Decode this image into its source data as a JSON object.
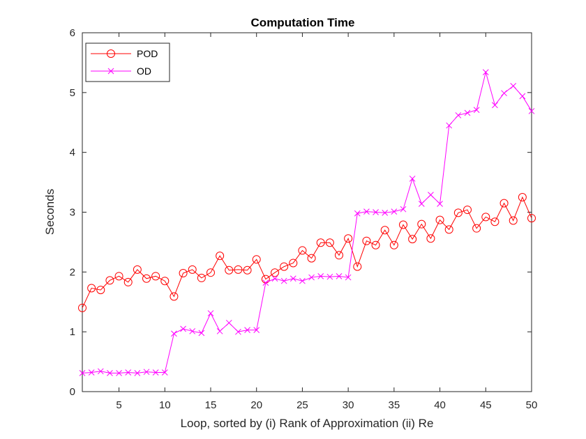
{
  "chart_data": {
    "type": "line",
    "title": "Computation Time",
    "xlabel": "Loop, sorted by (i) Rank of Approximation (ii) Re",
    "ylabel": "Seconds",
    "xlim": [
      1,
      50
    ],
    "ylim": [
      0,
      6
    ],
    "xticks": [
      "5",
      "10",
      "15",
      "20",
      "25",
      "30",
      "35",
      "40",
      "45",
      "50"
    ],
    "yticks": [
      "0",
      "1",
      "2",
      "3",
      "4",
      "5",
      "6"
    ],
    "grid": false,
    "legend_position": "top-left",
    "x": [
      1,
      2,
      3,
      4,
      5,
      6,
      7,
      8,
      9,
      10,
      11,
      12,
      13,
      14,
      15,
      16,
      17,
      18,
      19,
      20,
      21,
      22,
      23,
      24,
      25,
      26,
      27,
      28,
      29,
      30,
      31,
      32,
      33,
      34,
      35,
      36,
      37,
      38,
      39,
      40,
      41,
      42,
      43,
      44,
      45,
      46,
      47,
      48,
      49,
      50
    ],
    "series": [
      {
        "name": "POD",
        "color": "#ff0000",
        "marker": "circle",
        "values": [
          1.4,
          1.73,
          1.7,
          1.86,
          1.93,
          1.83,
          2.04,
          1.89,
          1.93,
          1.85,
          1.59,
          1.98,
          2.04,
          1.9,
          1.99,
          2.27,
          2.03,
          2.04,
          2.03,
          2.21,
          1.88,
          1.99,
          2.09,
          2.15,
          2.36,
          2.23,
          2.49,
          2.49,
          2.28,
          2.56,
          2.09,
          2.52,
          2.45,
          2.7,
          2.45,
          2.79,
          2.55,
          2.8,
          2.56,
          2.87,
          2.71,
          2.99,
          3.04,
          2.73,
          2.92,
          2.84,
          3.15,
          2.86,
          3.25,
          2.9
        ]
      },
      {
        "name": "OD",
        "color": "#ff00ff",
        "marker": "x",
        "values": [
          0.31,
          0.32,
          0.34,
          0.31,
          0.31,
          0.32,
          0.31,
          0.33,
          0.32,
          0.32,
          0.97,
          1.05,
          1.01,
          0.98,
          1.31,
          1.01,
          1.15,
          1.0,
          1.03,
          1.03,
          1.82,
          1.89,
          1.85,
          1.89,
          1.85,
          1.91,
          1.93,
          1.92,
          1.93,
          1.91,
          2.98,
          3.01,
          3.0,
          2.99,
          3.01,
          3.05,
          3.56,
          3.14,
          3.29,
          3.14,
          4.45,
          4.62,
          4.66,
          4.71,
          5.34,
          4.79,
          4.99,
          5.11,
          4.94,
          4.69
        ]
      }
    ]
  }
}
